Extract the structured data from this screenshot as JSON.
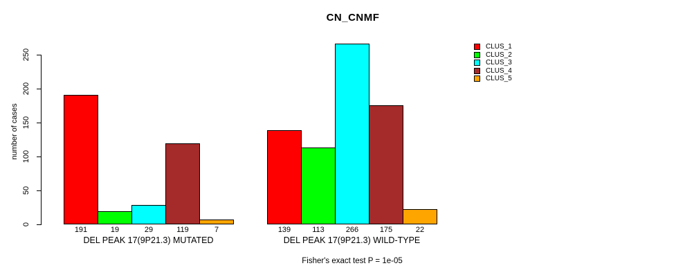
{
  "chart_data": {
    "type": "bar",
    "title": "CN_CNMF",
    "ylabel": "number of cases",
    "xlabel": "",
    "ylim": [
      0,
      250
    ],
    "yticks": [
      0,
      50,
      100,
      150,
      200,
      250
    ],
    "grid": false,
    "legend_position": "right-outside-top",
    "categories": [
      "DEL PEAK 17(9P21.3) MUTATED",
      "DEL PEAK 17(9P21.3) WILD-TYPE"
    ],
    "series": [
      {
        "name": "CLUS_1",
        "color": "#FF0000",
        "values": [
          191,
          139
        ]
      },
      {
        "name": "CLUS_2",
        "color": "#00FF00",
        "values": [
          19,
          113
        ]
      },
      {
        "name": "CLUS_3",
        "color": "#00FFFF",
        "values": [
          29,
          266
        ]
      },
      {
        "name": "CLUS_4",
        "color": "#A52A2A",
        "values": [
          119,
          175
        ]
      },
      {
        "name": "CLUS_5",
        "color": "#FFA500",
        "values": [
          7,
          22
        ]
      }
    ],
    "bar_value_labels_shown": true,
    "annotation": "Fisher's exact test P = 1e-05"
  }
}
